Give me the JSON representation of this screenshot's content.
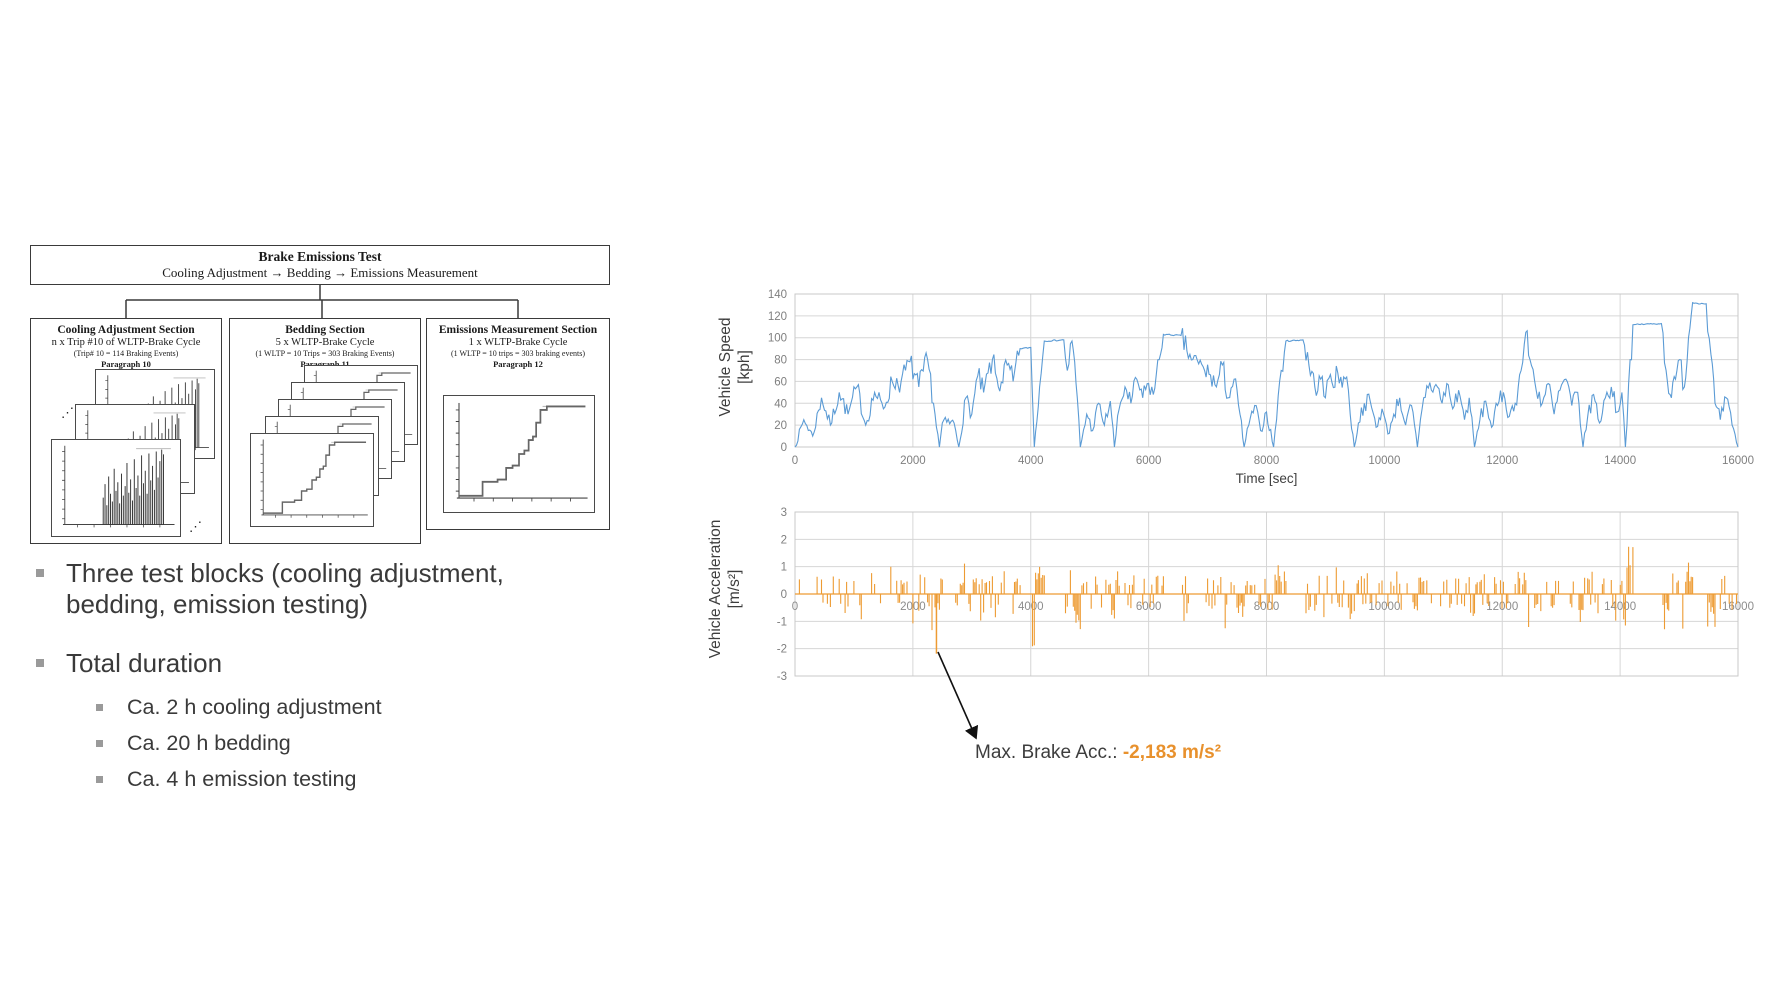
{
  "slide": {
    "bullets": [
      {
        "text": "Three test blocks (cooling adjustment, bedding, emission testing)"
      },
      {
        "text": "Total duration",
        "sub": [
          "Ca. 2 h cooling adjustment",
          "Ca. 20 h bedding",
          "Ca. 4 h emission testing"
        ]
      }
    ]
  },
  "diagram": {
    "root": {
      "title": "Brake Emissions Test",
      "subtitle": "Cooling Adjustment → Bedding → Emissions Measurement"
    },
    "sections": [
      {
        "title": "Cooling Adjustment Section",
        "line1": "n x Trip #10 of WLTP-Brake Cycle",
        "line2": "(Trip# 10 = 114 Braking Events)",
        "paragraph": "Paragraph 10"
      },
      {
        "title": "Bedding Section",
        "line1": "5 x WLTP-Brake Cycle",
        "line2": "(1 WLTP = 10 Trips = 303 Braking Events)",
        "paragraph": "Paragraph 11"
      },
      {
        "title": "Emissions Measurement Section",
        "line1": "1 x WLTP-Brake Cycle",
        "line2": "(1 WLTP = 10 trips = 303 braking events)",
        "paragraph": "Paragraph 12"
      }
    ]
  },
  "chart_data": [
    {
      "id": "speed",
      "type": "line",
      "ylabel_lines": [
        "Vehicle Speed",
        "[kph]"
      ],
      "xlabel": "Time [sec]",
      "xlim": [
        0,
        16000
      ],
      "ylim": [
        0,
        140
      ],
      "x_ticks": [
        0,
        2000,
        4000,
        6000,
        8000,
        10000,
        12000,
        14000,
        16000
      ],
      "y_ticks": [
        0,
        20,
        40,
        60,
        80,
        100,
        120,
        140
      ],
      "color": "#5b9bd5",
      "grid": true,
      "legend": "none",
      "envelope_points": [
        [
          0,
          0
        ],
        [
          150,
          25
        ],
        [
          300,
          10
        ],
        [
          450,
          45
        ],
        [
          600,
          20
        ],
        [
          750,
          50
        ],
        [
          900,
          30
        ],
        [
          1050,
          55
        ],
        [
          1200,
          20
        ],
        [
          1350,
          50
        ],
        [
          1500,
          35
        ],
        [
          1650,
          60
        ],
        [
          1800,
          60
        ],
        [
          1950,
          78
        ],
        [
          2100,
          55
        ],
        [
          2250,
          80
        ],
        [
          2350,
          40
        ],
        [
          2450,
          0
        ],
        [
          2500,
          22
        ],
        [
          2700,
          22
        ],
        [
          2780,
          0
        ],
        [
          2900,
          45
        ],
        [
          3000,
          30
        ],
        [
          3100,
          65
        ],
        [
          3200,
          50
        ],
        [
          3350,
          80
        ],
        [
          3450,
          55
        ],
        [
          3600,
          75
        ],
        [
          3700,
          60
        ],
        [
          3820,
          90
        ],
        [
          4000,
          91
        ],
        [
          4060,
          0
        ],
        [
          4150,
          55
        ],
        [
          4230,
          97
        ],
        [
          4560,
          98
        ],
        [
          4620,
          70
        ],
        [
          4700,
          97
        ],
        [
          4790,
          45
        ],
        [
          4840,
          0
        ],
        [
          4950,
          30
        ],
        [
          5050,
          15
        ],
        [
          5150,
          40
        ],
        [
          5250,
          20
        ],
        [
          5350,
          42
        ],
        [
          5420,
          0
        ],
        [
          5500,
          35
        ],
        [
          5600,
          55
        ],
        [
          5700,
          40
        ],
        [
          5800,
          62
        ],
        [
          5900,
          45
        ],
        [
          6000,
          58
        ],
        [
          6080,
          48
        ],
        [
          6180,
          80
        ],
        [
          6250,
          103
        ],
        [
          6550,
          102
        ],
        [
          6650,
          88
        ],
        [
          6750,
          80
        ],
        [
          6850,
          76
        ],
        [
          6950,
          70
        ],
        [
          7050,
          66
        ],
        [
          7150,
          55
        ],
        [
          7250,
          75
        ],
        [
          7350,
          45
        ],
        [
          7450,
          62
        ],
        [
          7550,
          30
        ],
        [
          7620,
          0
        ],
        [
          7700,
          20
        ],
        [
          7800,
          38
        ],
        [
          7900,
          15
        ],
        [
          8000,
          32
        ],
        [
          8120,
          0
        ],
        [
          8250,
          70
        ],
        [
          8330,
          97
        ],
        [
          8620,
          98
        ],
        [
          8720,
          75
        ],
        [
          8820,
          55
        ],
        [
          8920,
          62
        ],
        [
          9000,
          45
        ],
        [
          9060,
          63
        ],
        [
          9360,
          64
        ],
        [
          9420,
          30
        ],
        [
          9490,
          0
        ],
        [
          9560,
          22
        ],
        [
          9660,
          40
        ],
        [
          9760,
          42
        ],
        [
          9860,
          18
        ],
        [
          9960,
          35
        ],
        [
          10060,
          12
        ],
        [
          10160,
          30
        ],
        [
          10260,
          45
        ],
        [
          10360,
          20
        ],
        [
          10460,
          38
        ],
        [
          10560,
          0
        ],
        [
          10640,
          35
        ],
        [
          10720,
          56
        ],
        [
          10900,
          55
        ],
        [
          10980,
          40
        ],
        [
          11060,
          58
        ],
        [
          11160,
          35
        ],
        [
          11260,
          52
        ],
        [
          11360,
          25
        ],
        [
          11440,
          45
        ],
        [
          11530,
          0
        ],
        [
          11620,
          25
        ],
        [
          11720,
          42
        ],
        [
          11820,
          18
        ],
        [
          11920,
          38
        ],
        [
          12020,
          50
        ],
        [
          12120,
          28
        ],
        [
          12220,
          40
        ],
        [
          12320,
          70
        ],
        [
          12400,
          105
        ],
        [
          12470,
          80
        ],
        [
          12550,
          60
        ],
        [
          12680,
          40
        ],
        [
          12780,
          58
        ],
        [
          12880,
          30
        ],
        [
          12980,
          52
        ],
        [
          13080,
          62
        ],
        [
          13180,
          38
        ],
        [
          13280,
          50
        ],
        [
          13370,
          0
        ],
        [
          13450,
          28
        ],
        [
          13550,
          48
        ],
        [
          13650,
          22
        ],
        [
          13750,
          45
        ],
        [
          13850,
          55
        ],
        [
          13950,
          32
        ],
        [
          14030,
          50
        ],
        [
          14090,
          0
        ],
        [
          14170,
          80
        ],
        [
          14240,
          112
        ],
        [
          14700,
          113
        ],
        [
          14780,
          70
        ],
        [
          14870,
          45
        ],
        [
          14940,
          62
        ],
        [
          15010,
          80
        ],
        [
          15090,
          55
        ],
        [
          15160,
          100
        ],
        [
          15230,
          132
        ],
        [
          15460,
          131
        ],
        [
          15540,
          85
        ],
        [
          15610,
          40
        ],
        [
          15700,
          25
        ],
        [
          15800,
          45
        ],
        [
          15900,
          20
        ],
        [
          16000,
          0
        ]
      ],
      "jitter": {
        "seed": 7,
        "step_sec": 25,
        "amplitude_kph": 9
      }
    },
    {
      "id": "accel",
      "type": "line",
      "ylabel_lines": [
        "Vehicle Acceleration",
        "[m/s²]"
      ],
      "xlim": [
        0,
        16000
      ],
      "ylim": [
        -3,
        3
      ],
      "x_ticks": [
        0,
        2000,
        4000,
        6000,
        8000,
        10000,
        12000,
        14000,
        16000
      ],
      "y_ticks": [
        3,
        2,
        1,
        0,
        -1,
        -2,
        -3
      ],
      "color": "#ED9B33",
      "grid": true,
      "x_labels_inside": true,
      "derive": {
        "from": "speed",
        "gain": 4.5,
        "clip_pos": 1.9,
        "clip_neg": -2.1,
        "min_draw": 0.3
      },
      "max_brake_point": {
        "t": 2400,
        "value": -2.183
      }
    }
  ],
  "annotation": {
    "label": "Max. Brake Acc.: ",
    "value": "-2,183 m/s²",
    "value_color": "#E8912D"
  }
}
